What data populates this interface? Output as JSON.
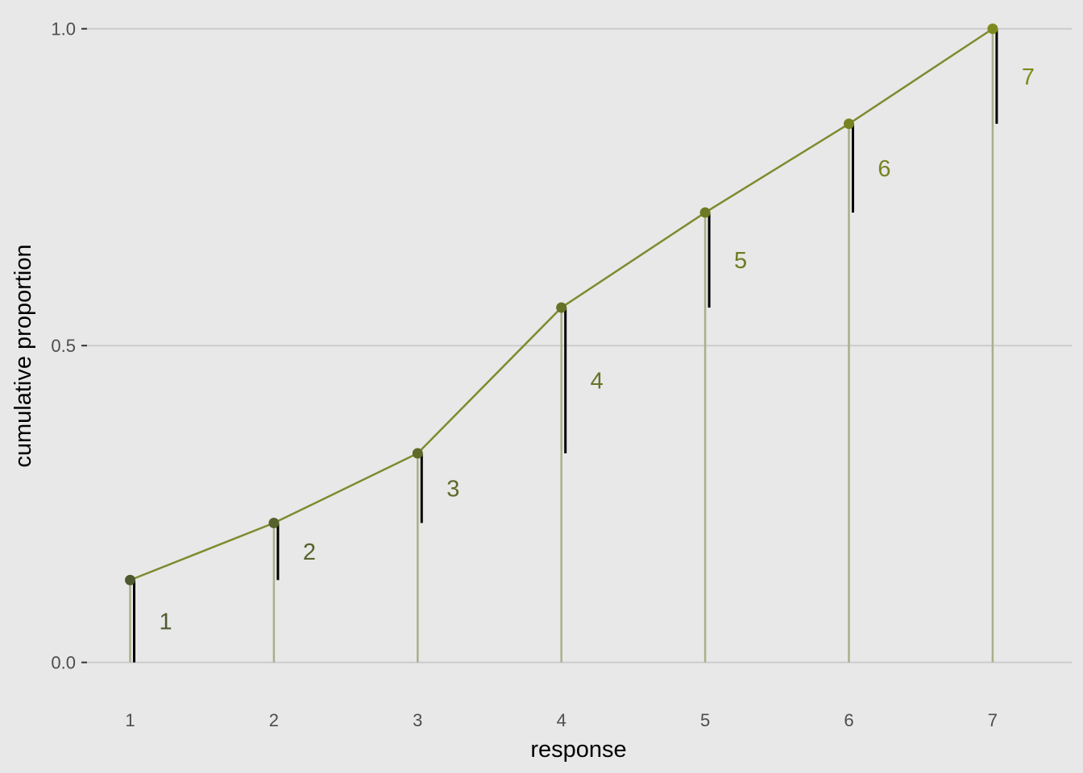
{
  "chart_data": {
    "type": "line",
    "title": "",
    "xlabel": "response",
    "ylabel": "cumulative proportion",
    "x": [
      1,
      2,
      3,
      4,
      5,
      6,
      7
    ],
    "y_cumulative": [
      0.13,
      0.22,
      0.33,
      0.56,
      0.71,
      0.85,
      1.0
    ],
    "point_labels": [
      "1",
      "2",
      "3",
      "4",
      "5",
      "6",
      "7"
    ],
    "xlim": [
      0.7,
      7.55
    ],
    "ylim": [
      -0.05,
      1.02
    ],
    "yticks": [
      0.0,
      0.5,
      1.0
    ],
    "ytick_labels": [
      "0.0",
      "0.5",
      "1.0"
    ],
    "xtick_labels": [
      "1",
      "2",
      "3",
      "4",
      "5",
      "6",
      "7"
    ],
    "grid": true,
    "legend": "none",
    "colors": {
      "line": "#7f8a2e",
      "points_start": "#4d5a2e",
      "points_end": "#7f8a1e",
      "stem": "#a8b088",
      "increment": "#000000",
      "gridline": "#cccccc",
      "background": "#e8e8e8"
    }
  }
}
